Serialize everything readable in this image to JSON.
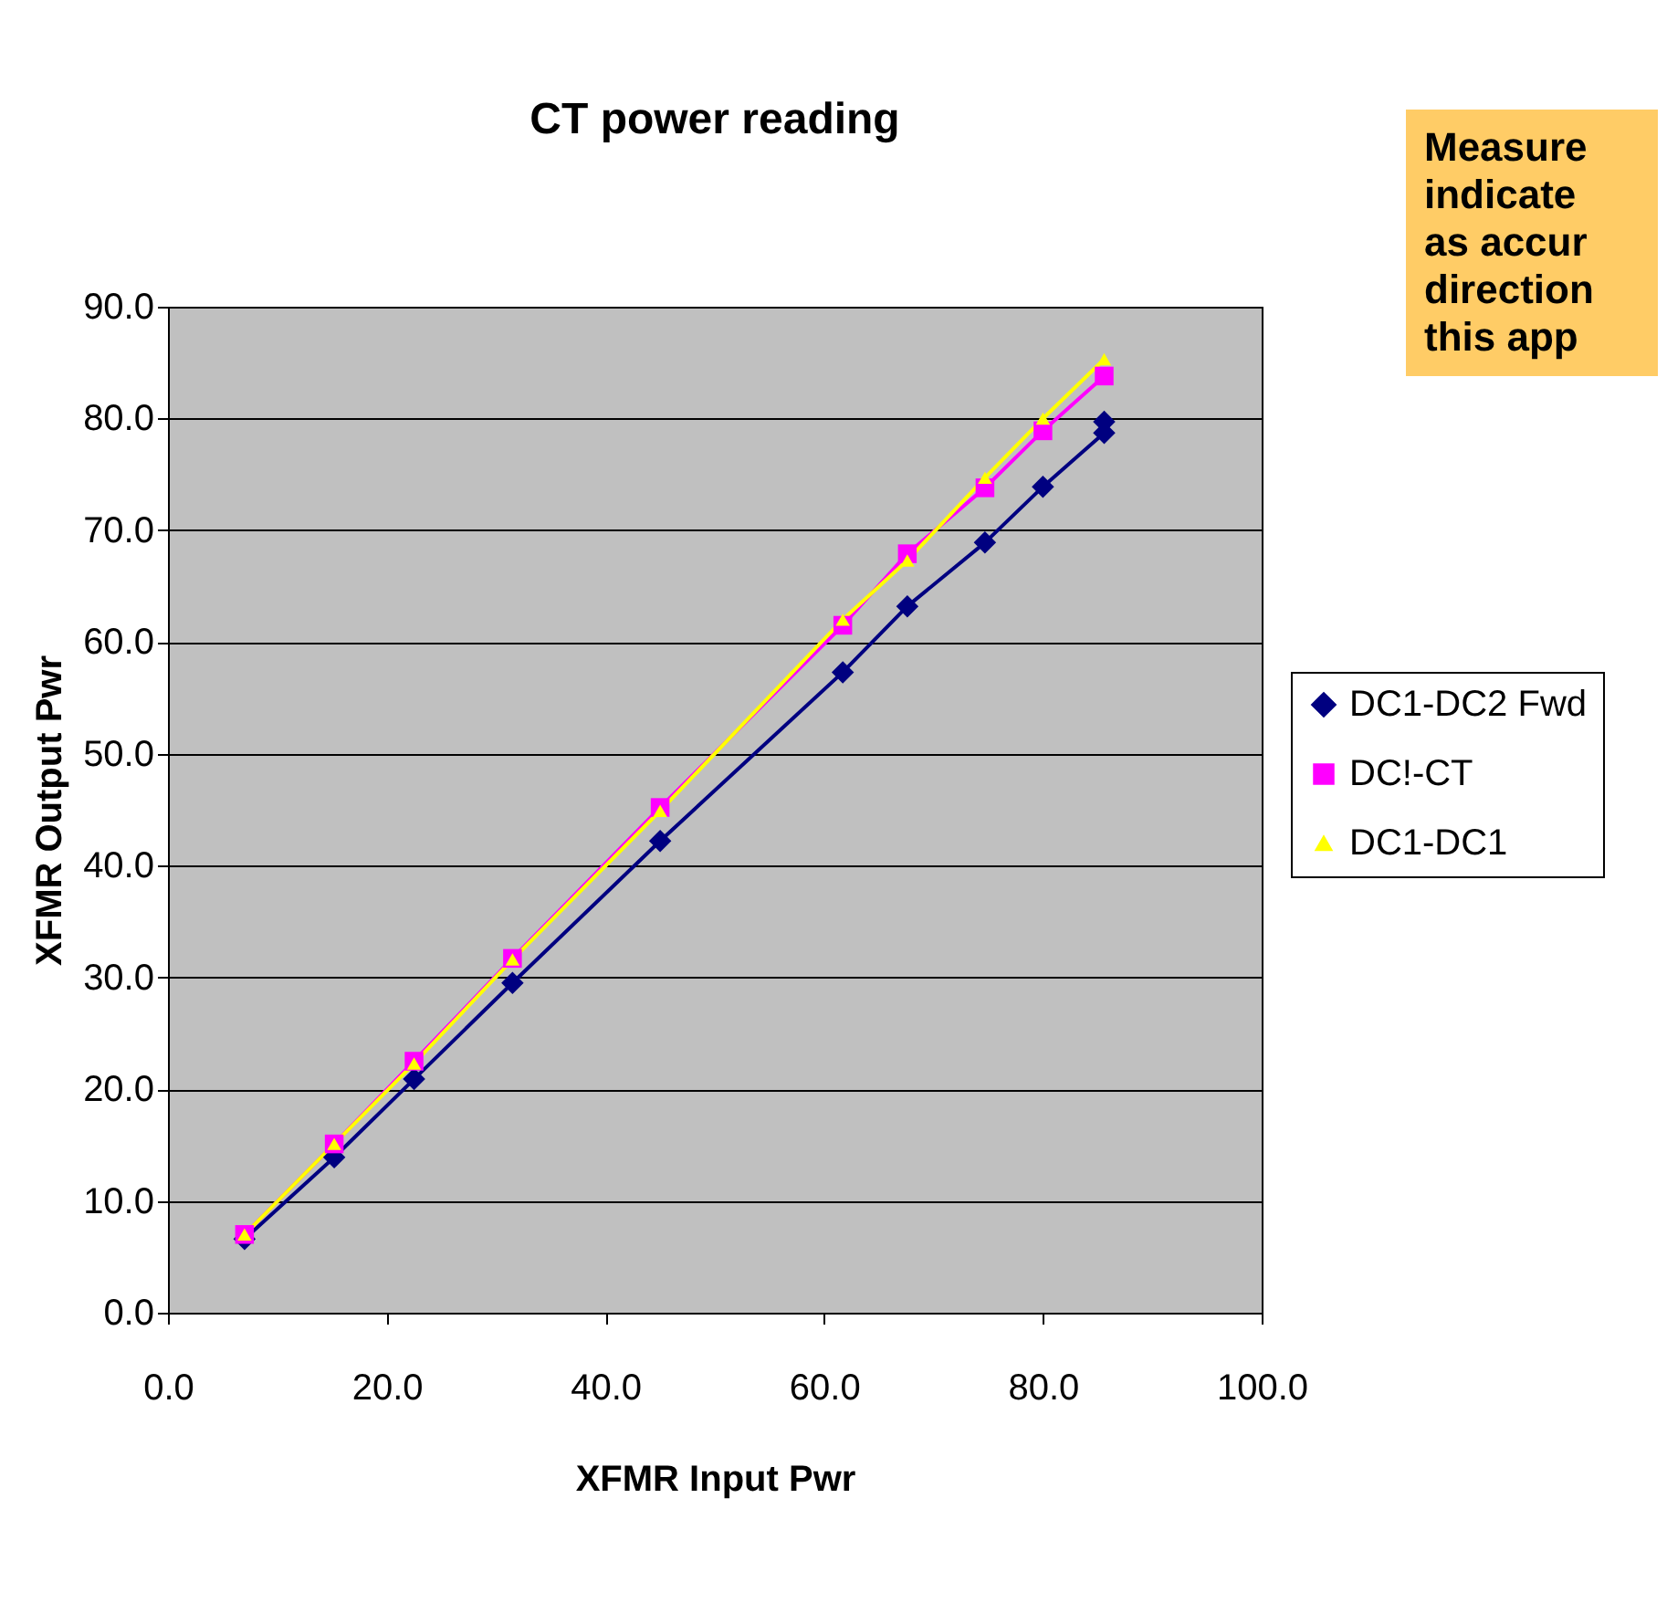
{
  "chart_data": {
    "type": "line",
    "title": "CT power reading",
    "xlabel": "XFMR Input Pwr",
    "ylabel": "XFMR Output Pwr",
    "annotations": [
      "Measure\nindicate\nas accur\ndirection\nthis app"
    ],
    "xlim": [
      0,
      100
    ],
    "xticks": [
      {
        "value": 0,
        "label": "0.0"
      },
      {
        "value": 20,
        "label": "20.0"
      },
      {
        "value": 40,
        "label": "40.0"
      },
      {
        "value": 60,
        "label": "60.0"
      },
      {
        "value": 80,
        "label": "80.0"
      },
      {
        "value": 100,
        "label": "100.0"
      }
    ],
    "ylim": [
      0,
      90
    ],
    "yticks": [
      {
        "value": 0,
        "label": "0.0"
      },
      {
        "value": 10,
        "label": "10.0"
      },
      {
        "value": 20,
        "label": "20.0"
      },
      {
        "value": 30,
        "label": "30.0"
      },
      {
        "value": 40,
        "label": "40.0"
      },
      {
        "value": 50,
        "label": "50.0"
      },
      {
        "value": 60,
        "label": "60.0"
      },
      {
        "value": 70,
        "label": "70.0"
      },
      {
        "value": 80,
        "label": "80.0"
      },
      {
        "value": 90,
        "label": "90.0"
      }
    ],
    "grid": "y",
    "legend": "right",
    "series": [
      {
        "name": "DC1-DC2 Fwd",
        "color": "#000080",
        "marker": "diamond",
        "x": [
          7.0,
          15.2,
          22.5,
          31.5,
          45.0,
          61.7,
          67.6,
          74.7,
          80.0,
          85.6,
          85.6
        ],
        "values": [
          6.6,
          13.9,
          20.9,
          29.5,
          42.2,
          57.3,
          63.2,
          68.9,
          73.9,
          78.7,
          79.7
        ]
      },
      {
        "name": "DC!-CT",
        "color": "#ff00ff",
        "marker": "square",
        "x": [
          7.0,
          15.2,
          22.5,
          31.5,
          45.0,
          61.7,
          67.6,
          74.7,
          80.0,
          85.6
        ],
        "values": [
          7.0,
          15.1,
          22.5,
          31.7,
          45.2,
          61.5,
          67.9,
          73.8,
          78.9,
          83.8
        ]
      },
      {
        "name": "DC1-DC1",
        "color": "#ffff00",
        "marker": "triangle",
        "x": [
          7.0,
          15.2,
          22.5,
          31.5,
          45.0,
          61.7,
          67.6,
          74.7,
          80.0,
          85.6
        ],
        "values": [
          7.0,
          15.1,
          22.3,
          31.6,
          44.9,
          62.0,
          67.3,
          74.7,
          80.0,
          85.3
        ]
      }
    ]
  }
}
